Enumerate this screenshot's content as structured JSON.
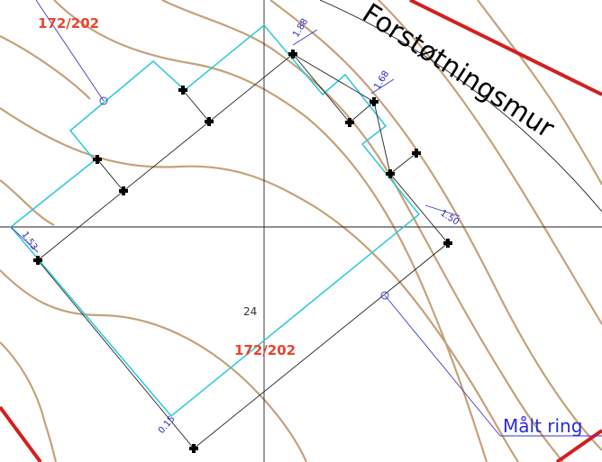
{
  "labels": [
    "172/202",
    "172/202",
    "24",
    "Forstøtningsmur",
    "1.88",
    "1.68",
    "1.50",
    "1.53",
    "0.15",
    "Målt ring"
  ]
}
